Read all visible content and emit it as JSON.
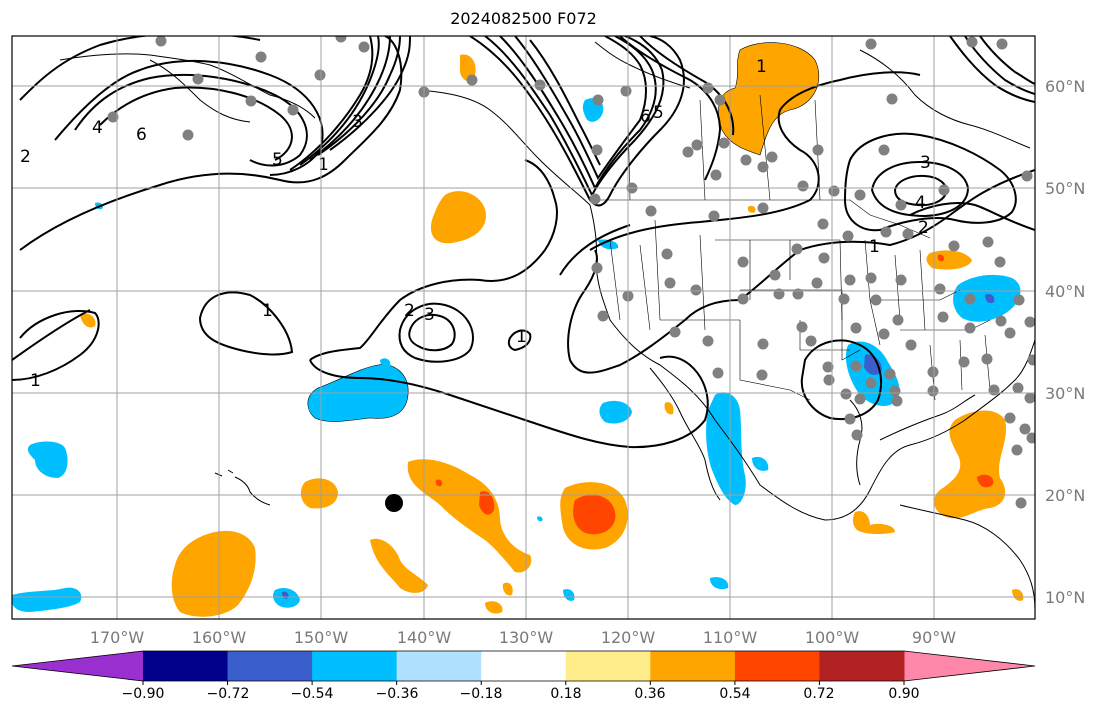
{
  "title": "2024082500 F072",
  "map": {
    "lon_ticks": [
      "170°W",
      "160°W",
      "150°W",
      "140°W",
      "130°W",
      "120°W",
      "110°W",
      "100°W",
      "90°W"
    ],
    "lat_ticks": [
      "60°N",
      "50°N",
      "40°N",
      "30°N",
      "20°N",
      "10°N"
    ],
    "contour_labels": [
      "1",
      "1",
      "1",
      "1",
      "1",
      "1",
      "2",
      "2",
      "2",
      "3",
      "3",
      "3",
      "4",
      "4",
      "5",
      "5",
      "6",
      "6"
    ],
    "marker_label": "",
    "gridline_color": "#a0a0a0"
  },
  "colorbar": {
    "ticks": [
      "−0.90",
      "−0.72",
      "−0.54",
      "−0.36",
      "−0.18",
      "0.18",
      "0.36",
      "0.54",
      "0.72",
      "0.90"
    ],
    "colors": [
      "#9b30d0",
      "#00008b",
      "#3a5fcd",
      "#00bfff",
      "#b0e2ff",
      "#ffffff",
      "#ffec8b",
      "#ffa500",
      "#ff4500",
      "#b22222",
      "#ff88aa"
    ]
  }
}
